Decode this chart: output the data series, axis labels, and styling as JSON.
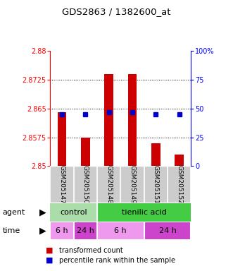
{
  "title": "GDS2863 / 1382600_at",
  "samples": [
    "GSM205147",
    "GSM205150",
    "GSM205148",
    "GSM205149",
    "GSM205151",
    "GSM205152"
  ],
  "bar_values": [
    2.864,
    2.8575,
    2.874,
    2.874,
    2.856,
    2.853
  ],
  "bar_base": 2.85,
  "blue_dot_values": [
    2.8635,
    2.8635,
    2.864,
    2.864,
    2.8635,
    2.8635
  ],
  "ylim": [
    2.85,
    2.88
  ],
  "yticks_left": [
    2.85,
    2.8575,
    2.865,
    2.8725,
    2.88
  ],
  "yticks_right": [
    0,
    25,
    50,
    75,
    100
  ],
  "bar_color": "#cc0000",
  "dot_color": "#0000cc",
  "agent_groups": [
    {
      "label": "control",
      "span": [
        0,
        2
      ],
      "color": "#aaddaa"
    },
    {
      "label": "tienilic acid",
      "span": [
        2,
        6
      ],
      "color": "#44cc44"
    }
  ],
  "time_groups": [
    {
      "label": "6 h",
      "span": [
        0,
        1
      ],
      "color": "#ee99ee"
    },
    {
      "label": "24 h",
      "span": [
        1,
        2
      ],
      "color": "#cc44cc"
    },
    {
      "label": "6 h",
      "span": [
        2,
        4
      ],
      "color": "#ee99ee"
    },
    {
      "label": "24 h",
      "span": [
        4,
        6
      ],
      "color": "#cc44cc"
    }
  ],
  "legend_items": [
    {
      "label": "transformed count",
      "color": "#cc0000"
    },
    {
      "label": "percentile rank within the sample",
      "color": "#0000cc"
    }
  ],
  "sample_bg": "#cccccc",
  "plot_bg": "#ffffff",
  "fig_bg": "#ffffff"
}
